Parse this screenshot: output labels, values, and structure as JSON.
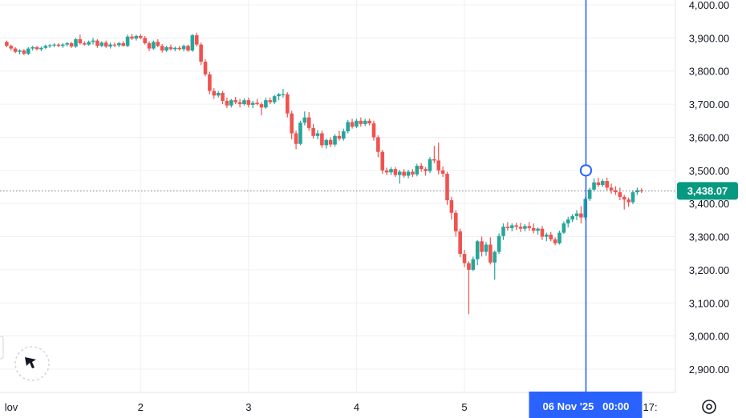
{
  "chart_data": {
    "type": "candlestick",
    "y_ticks": [
      "4,000.00",
      "3,900.00",
      "3,800.00",
      "3,700.00",
      "3,600.00",
      "3,500.00",
      "3,400.00",
      "3,300.00",
      "3,200.00",
      "3,100.00",
      "3,000.00",
      "2,900.00"
    ],
    "y_tick_values": [
      4000,
      3900,
      3800,
      3700,
      3600,
      3500,
      3400,
      3300,
      3200,
      3100,
      3000,
      2900
    ],
    "ylim": [
      2870,
      4010
    ],
    "x_ticks": [
      {
        "label": "lov",
        "day": 0.75
      },
      {
        "label": "2",
        "day": 2
      },
      {
        "label": "3",
        "day": 3
      },
      {
        "label": "4",
        "day": 4
      },
      {
        "label": "5",
        "day": 5
      },
      {
        "label": "17:",
        "day": 6.72
      }
    ],
    "xlim": [
      0.75,
      7.05
    ],
    "grid": true,
    "last_price": 3438.07,
    "last_price_label": "3,438.07",
    "crosshair": {
      "day": 6.125,
      "label": "06 Nov '25   00:00"
    },
    "colors": {
      "up": "#26a69a",
      "down": "#ef5350",
      "crosshair": "#2962ff",
      "grid": "#eef0f3"
    },
    "candles": [
      [
        0.76,
        3888,
        3892,
        3872,
        3876
      ],
      [
        0.8,
        3876,
        3880,
        3862,
        3868
      ],
      [
        0.84,
        3868,
        3872,
        3854,
        3858
      ],
      [
        0.88,
        3858,
        3866,
        3850,
        3862
      ],
      [
        0.92,
        3862,
        3866,
        3848,
        3852
      ],
      [
        0.96,
        3852,
        3872,
        3848,
        3868
      ],
      [
        1.0,
        3868,
        3876,
        3862,
        3872
      ],
      [
        1.04,
        3872,
        3876,
        3862,
        3866
      ],
      [
        1.08,
        3866,
        3874,
        3860,
        3870
      ],
      [
        1.12,
        3870,
        3880,
        3866,
        3876
      ],
      [
        1.16,
        3876,
        3882,
        3870,
        3878
      ],
      [
        1.2,
        3878,
        3884,
        3872,
        3880
      ],
      [
        1.24,
        3880,
        3884,
        3872,
        3876
      ],
      [
        1.28,
        3876,
        3884,
        3870,
        3880
      ],
      [
        1.32,
        3880,
        3888,
        3874,
        3884
      ],
      [
        1.36,
        3884,
        3888,
        3870,
        3874
      ],
      [
        1.4,
        3874,
        3900,
        3870,
        3896
      ],
      [
        1.44,
        3896,
        3910,
        3880,
        3884
      ],
      [
        1.48,
        3884,
        3890,
        3876,
        3880
      ],
      [
        1.52,
        3880,
        3892,
        3876,
        3888
      ],
      [
        1.56,
        3888,
        3900,
        3880,
        3892
      ],
      [
        1.6,
        3892,
        3896,
        3870,
        3876
      ],
      [
        1.64,
        3876,
        3890,
        3872,
        3886
      ],
      [
        1.68,
        3886,
        3892,
        3870,
        3874
      ],
      [
        1.72,
        3874,
        3886,
        3868,
        3880
      ],
      [
        1.76,
        3880,
        3886,
        3872,
        3878
      ],
      [
        1.8,
        3878,
        3888,
        3872,
        3884
      ],
      [
        1.84,
        3884,
        3890,
        3874,
        3876
      ],
      [
        1.88,
        3876,
        3910,
        3872,
        3904
      ],
      [
        1.92,
        3904,
        3912,
        3894,
        3898
      ],
      [
        1.96,
        3898,
        3910,
        3892,
        3906
      ],
      [
        2.0,
        3906,
        3912,
        3896,
        3900
      ],
      [
        2.04,
        3900,
        3906,
        3880,
        3884
      ],
      [
        2.08,
        3884,
        3890,
        3860,
        3868
      ],
      [
        2.12,
        3868,
        3892,
        3864,
        3888
      ],
      [
        2.16,
        3888,
        3896,
        3872,
        3876
      ],
      [
        2.2,
        3876,
        3882,
        3856,
        3862
      ],
      [
        2.24,
        3862,
        3876,
        3858,
        3872
      ],
      [
        2.28,
        3872,
        3880,
        3862,
        3866
      ],
      [
        2.32,
        3866,
        3874,
        3860,
        3870
      ],
      [
        2.36,
        3870,
        3876,
        3862,
        3866
      ],
      [
        2.4,
        3866,
        3880,
        3860,
        3876
      ],
      [
        2.44,
        3876,
        3880,
        3858,
        3862
      ],
      [
        2.48,
        3862,
        3912,
        3858,
        3908
      ],
      [
        2.52,
        3908,
        3916,
        3874,
        3880
      ],
      [
        2.56,
        3880,
        3886,
        3818,
        3828
      ],
      [
        2.6,
        3828,
        3836,
        3784,
        3790
      ],
      [
        2.64,
        3790,
        3798,
        3730,
        3740
      ],
      [
        2.68,
        3740,
        3748,
        3716,
        3726
      ],
      [
        2.72,
        3726,
        3740,
        3720,
        3734
      ],
      [
        2.76,
        3734,
        3740,
        3700,
        3710
      ],
      [
        2.8,
        3710,
        3720,
        3688,
        3696
      ],
      [
        2.84,
        3696,
        3716,
        3690,
        3712
      ],
      [
        2.88,
        3712,
        3722,
        3700,
        3706
      ],
      [
        2.92,
        3706,
        3716,
        3690,
        3700
      ],
      [
        2.96,
        3700,
        3718,
        3696,
        3712
      ],
      [
        3.0,
        3712,
        3720,
        3690,
        3698
      ],
      [
        3.04,
        3698,
        3710,
        3688,
        3704
      ],
      [
        3.08,
        3704,
        3716,
        3696,
        3700
      ],
      [
        3.12,
        3700,
        3706,
        3666,
        3690
      ],
      [
        3.16,
        3690,
        3720,
        3686,
        3712
      ],
      [
        3.2,
        3712,
        3720,
        3700,
        3706
      ],
      [
        3.24,
        3706,
        3728,
        3700,
        3724
      ],
      [
        3.28,
        3724,
        3734,
        3712,
        3730
      ],
      [
        3.32,
        3730,
        3746,
        3720,
        3730
      ],
      [
        3.36,
        3730,
        3736,
        3660,
        3672
      ],
      [
        3.4,
        3672,
        3680,
        3594,
        3612
      ],
      [
        3.44,
        3612,
        3620,
        3564,
        3580
      ],
      [
        3.48,
        3580,
        3650,
        3576,
        3644
      ],
      [
        3.52,
        3644,
        3678,
        3636,
        3660
      ],
      [
        3.56,
        3660,
        3676,
        3620,
        3628
      ],
      [
        3.6,
        3628,
        3640,
        3596,
        3604
      ],
      [
        3.64,
        3604,
        3622,
        3594,
        3612
      ],
      [
        3.68,
        3612,
        3620,
        3568,
        3576
      ],
      [
        3.72,
        3576,
        3596,
        3566,
        3592
      ],
      [
        3.76,
        3592,
        3600,
        3570,
        3578
      ],
      [
        3.8,
        3578,
        3610,
        3572,
        3604
      ],
      [
        3.84,
        3604,
        3620,
        3590,
        3596
      ],
      [
        3.88,
        3596,
        3626,
        3590,
        3618
      ],
      [
        3.92,
        3618,
        3652,
        3612,
        3646
      ],
      [
        3.96,
        3646,
        3656,
        3626,
        3632
      ],
      [
        4.0,
        3632,
        3656,
        3628,
        3650
      ],
      [
        4.04,
        3650,
        3660,
        3632,
        3640
      ],
      [
        4.08,
        3640,
        3656,
        3634,
        3650
      ],
      [
        4.12,
        3650,
        3656,
        3636,
        3642
      ],
      [
        4.16,
        3642,
        3650,
        3590,
        3600
      ],
      [
        4.2,
        3600,
        3606,
        3540,
        3556
      ],
      [
        4.24,
        3556,
        3562,
        3490,
        3500
      ],
      [
        4.28,
        3500,
        3508,
        3486,
        3494
      ],
      [
        4.32,
        3494,
        3510,
        3486,
        3504
      ],
      [
        4.36,
        3504,
        3510,
        3480,
        3486
      ],
      [
        4.4,
        3486,
        3502,
        3460,
        3496
      ],
      [
        4.44,
        3496,
        3504,
        3478,
        3484
      ],
      [
        4.48,
        3484,
        3502,
        3476,
        3496
      ],
      [
        4.52,
        3496,
        3504,
        3480,
        3488
      ],
      [
        4.56,
        3488,
        3520,
        3482,
        3514
      ],
      [
        4.6,
        3514,
        3522,
        3496,
        3504
      ],
      [
        4.64,
        3504,
        3510,
        3484,
        3498
      ],
      [
        4.68,
        3498,
        3540,
        3492,
        3534
      ],
      [
        4.72,
        3534,
        3574,
        3522,
        3530
      ],
      [
        4.76,
        3530,
        3584,
        3488,
        3500
      ],
      [
        4.8,
        3500,
        3512,
        3480,
        3490
      ],
      [
        4.84,
        3490,
        3496,
        3396,
        3410
      ],
      [
        4.88,
        3410,
        3420,
        3352,
        3372
      ],
      [
        4.92,
        3372,
        3380,
        3300,
        3316
      ],
      [
        4.96,
        3316,
        3324,
        3238,
        3248
      ],
      [
        5.0,
        3248,
        3260,
        3208,
        3220
      ],
      [
        5.04,
        3220,
        3226,
        3066,
        3200
      ],
      [
        5.08,
        3200,
        3240,
        3196,
        3232
      ],
      [
        5.12,
        3232,
        3290,
        3214,
        3286
      ],
      [
        5.16,
        3286,
        3300,
        3240,
        3254
      ],
      [
        5.2,
        3254,
        3284,
        3242,
        3276
      ],
      [
        5.24,
        3276,
        3298,
        3216,
        3222
      ],
      [
        5.28,
        3222,
        3258,
        3170,
        3254
      ],
      [
        5.32,
        3254,
        3310,
        3248,
        3302
      ],
      [
        5.36,
        3302,
        3340,
        3290,
        3330
      ],
      [
        5.4,
        3330,
        3344,
        3318,
        3326
      ],
      [
        5.44,
        3326,
        3340,
        3316,
        3334
      ],
      [
        5.48,
        3334,
        3342,
        3320,
        3330
      ],
      [
        5.52,
        3330,
        3342,
        3314,
        3324
      ],
      [
        5.56,
        3324,
        3338,
        3316,
        3332
      ],
      [
        5.6,
        3332,
        3344,
        3318,
        3326
      ],
      [
        5.64,
        3326,
        3340,
        3310,
        3318
      ],
      [
        5.68,
        3318,
        3328,
        3306,
        3324
      ],
      [
        5.72,
        3324,
        3332,
        3290,
        3300
      ],
      [
        5.76,
        3300,
        3312,
        3286,
        3306
      ],
      [
        5.8,
        3306,
        3314,
        3286,
        3292
      ],
      [
        5.84,
        3292,
        3298,
        3274,
        3280
      ],
      [
        5.88,
        3280,
        3318,
        3276,
        3312
      ],
      [
        5.92,
        3312,
        3346,
        3308,
        3340
      ],
      [
        5.96,
        3340,
        3360,
        3328,
        3352
      ],
      [
        6.0,
        3352,
        3368,
        3344,
        3362
      ],
      [
        6.04,
        3362,
        3380,
        3350,
        3370
      ],
      [
        6.08,
        3370,
        3392,
        3340,
        3358
      ],
      [
        6.12,
        3358,
        3420,
        3350,
        3414
      ],
      [
        6.16,
        3414,
        3448,
        3408,
        3442
      ],
      [
        6.2,
        3442,
        3476,
        3436,
        3464
      ],
      [
        6.24,
        3464,
        3478,
        3450,
        3456
      ],
      [
        6.28,
        3456,
        3474,
        3450,
        3468
      ],
      [
        6.32,
        3468,
        3478,
        3440,
        3448
      ],
      [
        6.36,
        3448,
        3460,
        3430,
        3440
      ],
      [
        6.4,
        3440,
        3452,
        3426,
        3434
      ],
      [
        6.44,
        3434,
        3448,
        3410,
        3420
      ],
      [
        6.48,
        3420,
        3426,
        3382,
        3412
      ],
      [
        6.52,
        3412,
        3418,
        3390,
        3404
      ],
      [
        6.56,
        3404,
        3440,
        3398,
        3434
      ],
      [
        6.6,
        3434,
        3448,
        3426,
        3440
      ],
      [
        6.64,
        3440,
        3446,
        3432,
        3438
      ]
    ]
  }
}
